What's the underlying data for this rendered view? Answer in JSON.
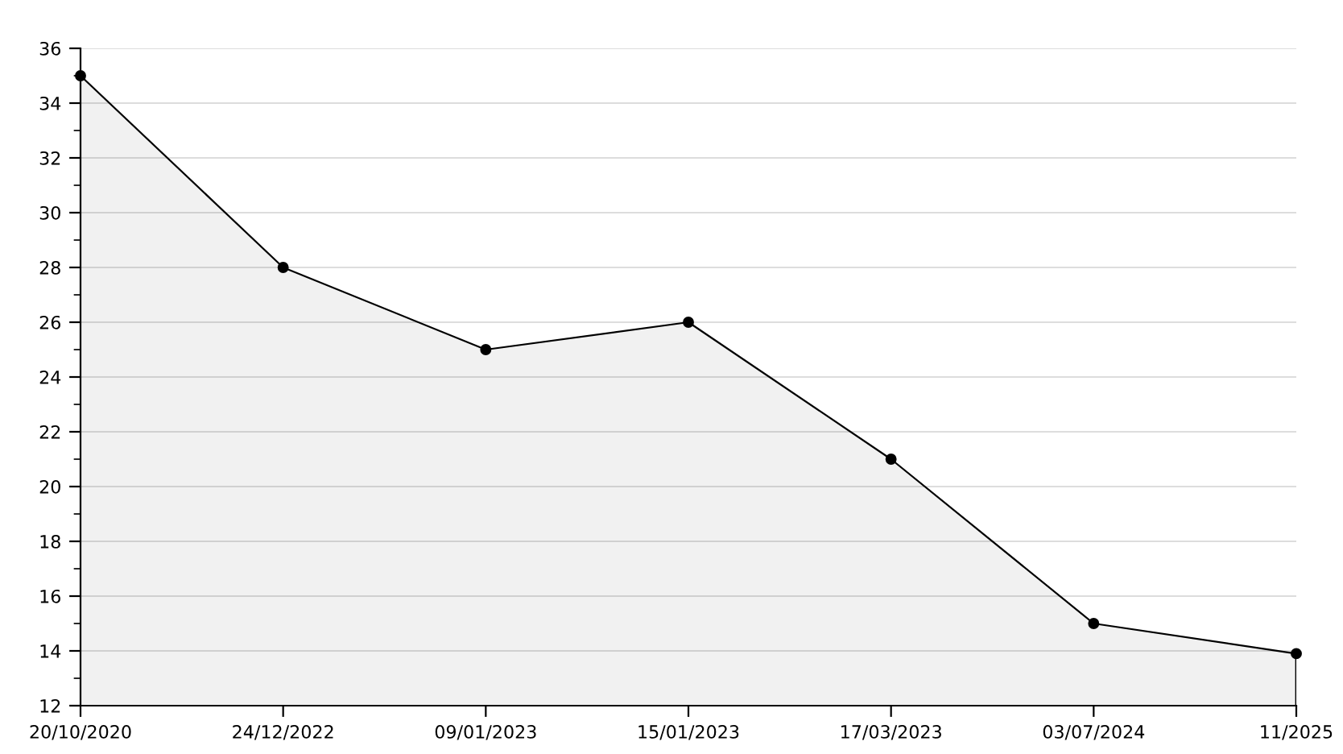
{
  "chart_data": {
    "type": "area",
    "categories": [
      "20/10/2020",
      "24/12/2022",
      "09/01/2023",
      "15/01/2023",
      "17/03/2023",
      "03/07/2024",
      "11/2025"
    ],
    "series": [
      {
        "color": "#000000",
        "values": [
          35,
          28,
          25,
          26,
          21,
          15,
          13.9
        ]
      }
    ],
    "ylim": [
      12,
      36
    ],
    "yticks": [
      12,
      {
        "value": 13,
        "label": null
      },
      14,
      {
        "value": 15,
        "label": null
      },
      16,
      {
        "value": 17,
        "label": null
      },
      18,
      {
        "value": 19,
        "label": null
      },
      20,
      {
        "value": 21,
        "label": null
      },
      22,
      {
        "value": 23,
        "label": null
      },
      24,
      {
        "value": 25,
        "label": null
      },
      26,
      {
        "value": 27,
        "label": null
      },
      28,
      {
        "value": 29,
        "label": null
      },
      30,
      {
        "value": 31,
        "label": null
      },
      32,
      {
        "value": 33,
        "label": null
      },
      34,
      {
        "value": 35,
        "label": null
      },
      36
    ],
    "grid": "y",
    "marker": "circle",
    "line_style": "solid",
    "legend": false
  }
}
